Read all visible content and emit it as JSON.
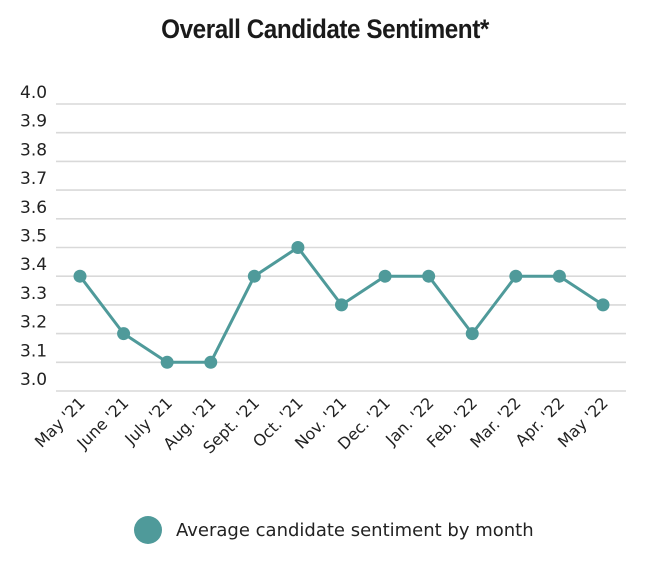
{
  "chart_data": {
    "type": "line",
    "title": "Overall Candidate Sentiment*",
    "xlabel": "",
    "ylabel": "",
    "categories": [
      "May '21",
      "June '21",
      "July '21",
      "Aug. '21",
      "Sept. '21",
      "Oct. '21",
      "Nov. '21",
      "Dec. '21",
      "Jan. '22",
      "Feb. '22",
      "Mar. '22",
      "Apr. '22",
      "May '22"
    ],
    "series": [
      {
        "name": "Average candidate sentiment by month",
        "values": [
          3.4,
          3.2,
          3.1,
          3.1,
          3.4,
          3.5,
          3.3,
          3.4,
          3.4,
          3.2,
          3.4,
          3.4,
          3.3
        ]
      }
    ],
    "ylim": [
      3.0,
      4.0
    ],
    "yticks": [
      "4.0",
      "3.9",
      "3.8",
      "3.7",
      "3.6",
      "3.5",
      "3.4",
      "3.3",
      "3.2",
      "3.1",
      "3.0"
    ],
    "grid": true,
    "legend_position": "bottom",
    "color": "#4f9a9a"
  }
}
